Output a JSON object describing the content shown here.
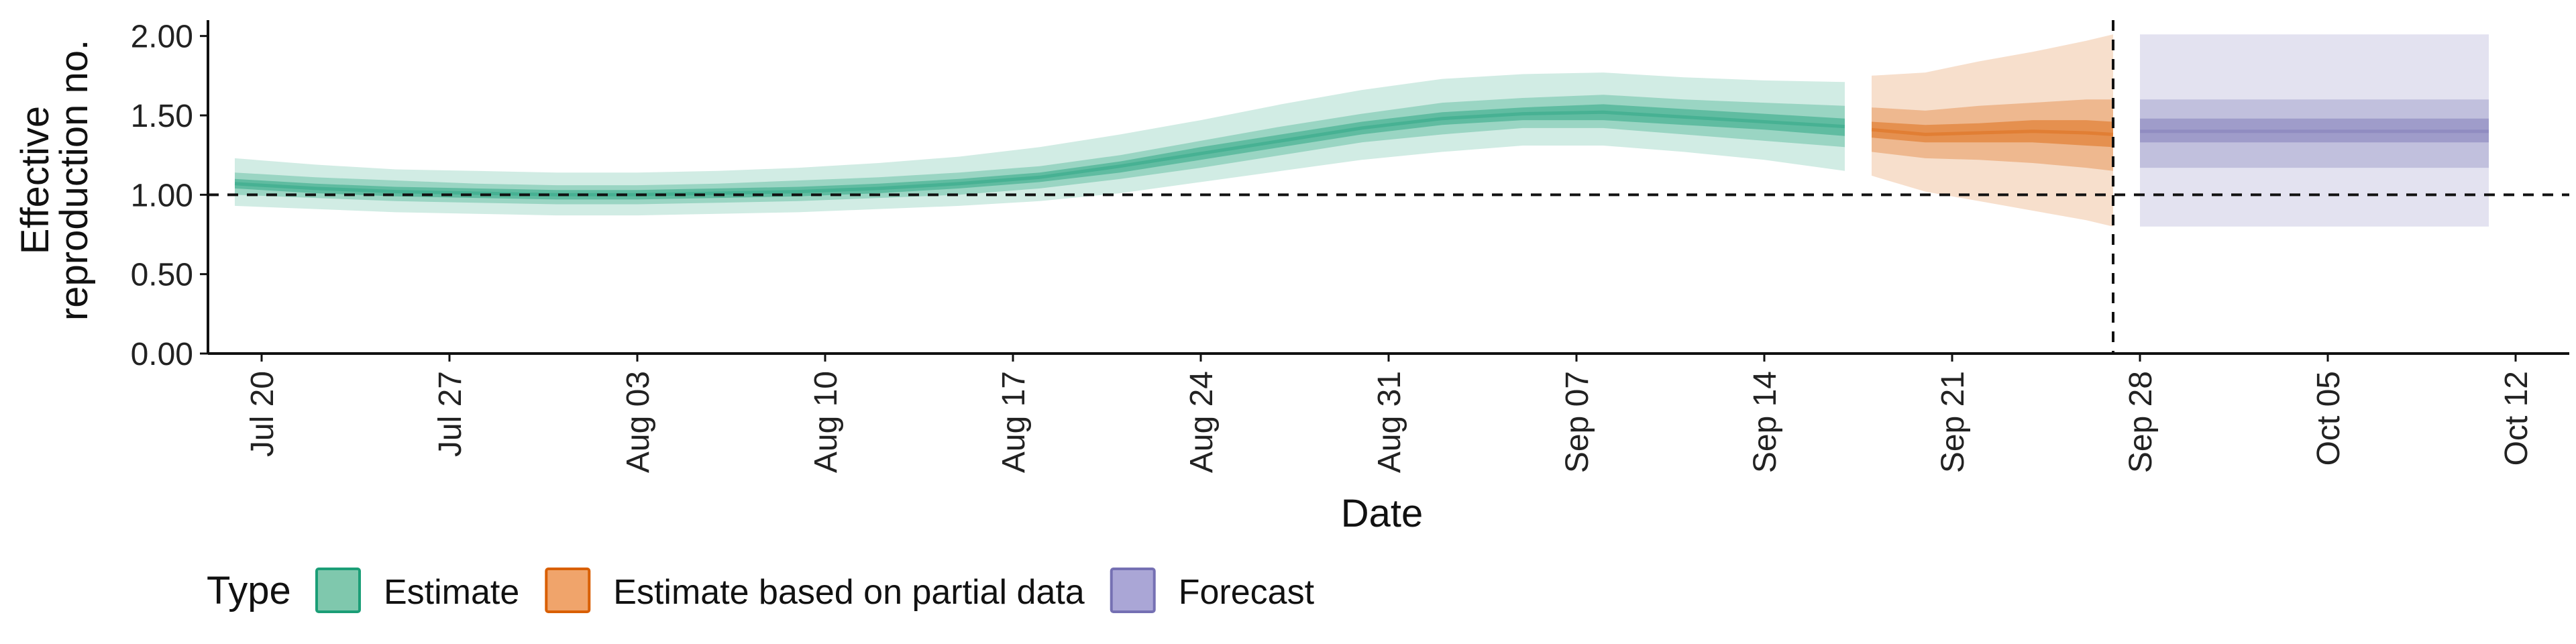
{
  "chart_data": {
    "type": "area",
    "title": "",
    "xlabel": "Date",
    "ylabel_lines": [
      "Effective",
      "reproduction no."
    ],
    "ylim": [
      0,
      2.1
    ],
    "yticks": [
      0,
      0.5,
      1.0,
      1.5,
      2.0
    ],
    "ytick_labels": [
      "0.00",
      "0.50",
      "1.00",
      "1.50",
      "2.00"
    ],
    "xlim": [
      "2020-07-18",
      "2020-10-14"
    ],
    "xticks": [
      "2020-07-20",
      "2020-07-27",
      "2020-08-03",
      "2020-08-10",
      "2020-08-17",
      "2020-08-24",
      "2020-08-31",
      "2020-09-07",
      "2020-09-14",
      "2020-09-21",
      "2020-09-28",
      "2020-10-05",
      "2020-10-12"
    ],
    "xtick_labels": [
      "Jul 20",
      "Jul 27",
      "Aug 03",
      "Aug 10",
      "Aug 17",
      "Aug 24",
      "Aug 31",
      "Sep 07",
      "Sep 14",
      "Sep 21",
      "Sep 28",
      "Oct 05",
      "Oct 12"
    ],
    "grid": false,
    "hline": {
      "y": 1.0,
      "style": "dashed"
    },
    "vline": {
      "x": "2020-09-27",
      "style": "dashed"
    },
    "legend": {
      "position": "bottom-left",
      "title": "Type",
      "entries": [
        {
          "label": "Estimate",
          "fill": "#7fc8ad",
          "stroke": "#1b9e77"
        },
        {
          "label": "Estimate based on partial data",
          "fill": "#f0a46b",
          "stroke": "#d95f02"
        },
        {
          "label": "Forecast",
          "fill": "#aaa6d6",
          "stroke": "#7570b3"
        }
      ]
    },
    "series": [
      {
        "name": "Estimate",
        "color": "#1b9e77",
        "x": [
          "2020-07-19",
          "2020-07-22",
          "2020-07-25",
          "2020-07-28",
          "2020-07-31",
          "2020-08-03",
          "2020-08-06",
          "2020-08-09",
          "2020-08-12",
          "2020-08-15",
          "2020-08-18",
          "2020-08-21",
          "2020-08-24",
          "2020-08-27",
          "2020-08-30",
          "2020-09-02",
          "2020-09-05",
          "2020-09-08",
          "2020-09-11",
          "2020-09-14",
          "2020-09-17"
        ],
        "median": [
          1.07,
          1.04,
          1.02,
          1.01,
          1.0,
          1.0,
          1.01,
          1.02,
          1.04,
          1.07,
          1.11,
          1.18,
          1.26,
          1.34,
          1.42,
          1.48,
          1.51,
          1.52,
          1.49,
          1.46,
          1.43
        ],
        "lower20": [
          1.04,
          1.01,
          0.99,
          0.98,
          0.97,
          0.97,
          0.98,
          0.99,
          1.01,
          1.04,
          1.08,
          1.14,
          1.22,
          1.3,
          1.38,
          1.44,
          1.47,
          1.47,
          1.44,
          1.41,
          1.37
        ],
        "upper20": [
          1.1,
          1.07,
          1.05,
          1.04,
          1.03,
          1.03,
          1.04,
          1.05,
          1.07,
          1.1,
          1.14,
          1.21,
          1.3,
          1.38,
          1.46,
          1.52,
          1.55,
          1.57,
          1.54,
          1.51,
          1.48
        ],
        "lower50": [
          1.0,
          0.98,
          0.96,
          0.95,
          0.94,
          0.94,
          0.95,
          0.96,
          0.98,
          1.0,
          1.04,
          1.1,
          1.17,
          1.25,
          1.33,
          1.38,
          1.42,
          1.42,
          1.38,
          1.34,
          1.3
        ],
        "upper50": [
          1.14,
          1.11,
          1.09,
          1.07,
          1.06,
          1.06,
          1.07,
          1.09,
          1.11,
          1.14,
          1.18,
          1.25,
          1.34,
          1.43,
          1.51,
          1.58,
          1.61,
          1.63,
          1.6,
          1.58,
          1.56
        ],
        "lower90": [
          0.93,
          0.91,
          0.89,
          0.88,
          0.87,
          0.87,
          0.88,
          0.89,
          0.91,
          0.93,
          0.96,
          1.01,
          1.08,
          1.15,
          1.22,
          1.27,
          1.31,
          1.31,
          1.27,
          1.22,
          1.15
        ],
        "upper90": [
          1.23,
          1.19,
          1.16,
          1.15,
          1.14,
          1.14,
          1.15,
          1.17,
          1.2,
          1.24,
          1.3,
          1.38,
          1.47,
          1.57,
          1.66,
          1.73,
          1.76,
          1.77,
          1.74,
          1.72,
          1.71
        ]
      },
      {
        "name": "Estimate based on partial data",
        "color": "#d95f02",
        "x": [
          "2020-09-18",
          "2020-09-20",
          "2020-09-22",
          "2020-09-24",
          "2020-09-26",
          "2020-09-27"
        ],
        "median": [
          1.41,
          1.38,
          1.39,
          1.4,
          1.39,
          1.38
        ],
        "lower20": [
          1.36,
          1.33,
          1.33,
          1.33,
          1.31,
          1.3
        ],
        "upper20": [
          1.46,
          1.44,
          1.45,
          1.47,
          1.47,
          1.46
        ],
        "lower50": [
          1.27,
          1.23,
          1.22,
          1.2,
          1.17,
          1.15
        ],
        "upper50": [
          1.55,
          1.53,
          1.56,
          1.58,
          1.6,
          1.6
        ],
        "lower90": [
          1.12,
          1.02,
          0.96,
          0.9,
          0.84,
          0.8
        ],
        "upper90": [
          1.75,
          1.77,
          1.84,
          1.9,
          1.97,
          2.01
        ]
      },
      {
        "name": "Forecast",
        "color": "#7570b3",
        "x": [
          "2020-09-28",
          "2020-10-11"
        ],
        "median": [
          1.4,
          1.4
        ],
        "lower20": [
          1.33,
          1.33
        ],
        "upper20": [
          1.48,
          1.48
        ],
        "lower50": [
          1.17,
          1.17
        ],
        "upper50": [
          1.6,
          1.6
        ],
        "lower90": [
          0.8,
          0.8
        ],
        "upper90": [
          2.01,
          2.01
        ]
      }
    ]
  }
}
